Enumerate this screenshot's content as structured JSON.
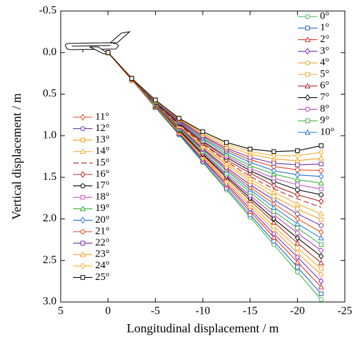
{
  "chart_data": {
    "type": "line",
    "xlabel": "Longitudinal displacement / m",
    "ylabel": "Vertical displacement / m",
    "xlim": [
      5,
      -25
    ],
    "xticks": [
      5,
      0,
      -5,
      -10,
      -15,
      -20,
      -25
    ],
    "ylim": [
      -0.5,
      3.0
    ],
    "y_inverted": true,
    "yticks": [
      -0.5,
      {
        "value": 0,
        "label": "0.0"
      },
      0.5,
      {
        "value": 1,
        "label": "1.0"
      },
      1.5,
      {
        "value": 2,
        "label": "2.0"
      },
      2.5,
      {
        "value": 3,
        "label": "3.0"
      }
    ],
    "x": [
      0,
      -2.5,
      -5,
      -7.5,
      -10,
      -12.5,
      -15,
      -17.5,
      -20,
      -22.5
    ],
    "series": [
      {
        "name": "0°",
        "color": "#3cb44b",
        "marker": "circle",
        "values": [
          0,
          0.33,
          0.66,
          0.99,
          1.32,
          1.65,
          1.98,
          2.31,
          2.64,
          2.97
        ]
      },
      {
        "name": "1°",
        "color": "#1f5fbf",
        "marker": "square",
        "values": [
          0,
          0.33,
          0.66,
          0.98,
          1.31,
          1.63,
          1.95,
          2.27,
          2.58,
          2.9
        ]
      },
      {
        "name": "2°",
        "color": "#e03020",
        "marker": "triangle",
        "values": [
          0,
          0.33,
          0.65,
          0.97,
          1.29,
          1.6,
          1.91,
          2.22,
          2.52,
          2.82
        ]
      },
      {
        "name": "3°",
        "color": "#7b2fbe",
        "marker": "diamond",
        "values": [
          0,
          0.33,
          0.65,
          0.97,
          1.28,
          1.58,
          1.88,
          2.18,
          2.46,
          2.75
        ]
      },
      {
        "name": "4°",
        "color": "#f0a020",
        "marker": "circle",
        "values": [
          0,
          0.33,
          0.65,
          0.96,
          1.26,
          1.56,
          1.85,
          2.13,
          2.41,
          2.67
        ]
      },
      {
        "name": "5°",
        "color": "#f5a623",
        "marker": "square",
        "values": [
          0,
          0.33,
          0.64,
          0.95,
          1.25,
          1.54,
          1.82,
          2.09,
          2.35,
          2.6
        ]
      },
      {
        "name": "6°",
        "color": "#b22222",
        "marker": "triangle",
        "values": [
          0,
          0.32,
          0.64,
          0.94,
          1.23,
          1.51,
          1.78,
          2.04,
          2.29,
          2.53
        ]
      },
      {
        "name": "7°",
        "color": "#000000",
        "marker": "diamond",
        "values": [
          0,
          0.32,
          0.63,
          0.93,
          1.22,
          1.49,
          1.75,
          2.0,
          2.23,
          2.45
        ]
      },
      {
        "name": "8°",
        "color": "#b040c0",
        "marker": "circle",
        "values": [
          0,
          0.32,
          0.63,
          0.92,
          1.2,
          1.47,
          1.72,
          1.95,
          2.17,
          2.38
        ]
      },
      {
        "name": "9°",
        "color": "#40b040",
        "marker": "square",
        "values": [
          0,
          0.32,
          0.63,
          0.92,
          1.19,
          1.45,
          1.68,
          1.91,
          2.11,
          2.31
        ]
      },
      {
        "name": "10°",
        "color": "#1e78d0",
        "marker": "triangle",
        "values": [
          0,
          0.32,
          0.62,
          0.91,
          1.17,
          1.42,
          1.65,
          1.86,
          2.06,
          2.23
        ]
      },
      {
        "name": "11°",
        "color": "#e05020",
        "marker": "diamond",
        "values": [
          0,
          0.32,
          0.62,
          0.9,
          1.16,
          1.4,
          1.62,
          1.82,
          2.0,
          2.16
        ]
      },
      {
        "name": "12°",
        "color": "#7030a0",
        "marker": "circle",
        "values": [
          0,
          0.32,
          0.62,
          0.89,
          1.15,
          1.38,
          1.59,
          1.77,
          1.94,
          2.08
        ]
      },
      {
        "name": "13°",
        "color": "#f0a020",
        "marker": "square",
        "values": [
          0,
          0.32,
          0.61,
          0.88,
          1.13,
          1.35,
          1.55,
          1.73,
          1.88,
          2.01
        ]
      },
      {
        "name": "14°",
        "color": "#f0b030",
        "marker": "triangle",
        "values": [
          0,
          0.32,
          0.61,
          0.88,
          1.12,
          1.33,
          1.52,
          1.68,
          1.82,
          1.94
        ]
      },
      {
        "name": "15°",
        "color": "#b02020",
        "marker": "none",
        "values": [
          0,
          0.32,
          0.61,
          0.87,
          1.1,
          1.31,
          1.49,
          1.64,
          1.76,
          1.86
        ]
      },
      {
        "name": "16°",
        "color": "#b02020",
        "marker": "diamond",
        "values": [
          0,
          0.32,
          0.6,
          0.86,
          1.09,
          1.29,
          1.45,
          1.6,
          1.71,
          1.79
        ]
      },
      {
        "name": "17°",
        "color": "#000000",
        "marker": "circle",
        "values": [
          0,
          0.31,
          0.6,
          0.85,
          1.07,
          1.26,
          1.42,
          1.55,
          1.65,
          1.71
        ]
      },
      {
        "name": "18°",
        "color": "#c050c0",
        "marker": "square",
        "values": [
          0,
          0.31,
          0.59,
          0.84,
          1.06,
          1.24,
          1.39,
          1.51,
          1.59,
          1.64
        ]
      },
      {
        "name": "19°",
        "color": "#30b030",
        "marker": "triangle",
        "values": [
          0,
          0.31,
          0.59,
          0.83,
          1.04,
          1.22,
          1.36,
          1.46,
          1.53,
          1.57
        ]
      },
      {
        "name": "20°",
        "color": "#2070d0",
        "marker": "diamond",
        "values": [
          0,
          0.31,
          0.59,
          0.83,
          1.03,
          1.19,
          1.32,
          1.42,
          1.47,
          1.49
        ]
      },
      {
        "name": "21°",
        "color": "#e04020",
        "marker": "circle",
        "values": [
          0,
          0.31,
          0.58,
          0.82,
          1.01,
          1.17,
          1.29,
          1.37,
          1.41,
          1.42
        ]
      },
      {
        "name": "22°",
        "color": "#7030a0",
        "marker": "square",
        "values": [
          0,
          0.31,
          0.58,
          0.81,
          1.0,
          1.15,
          1.26,
          1.33,
          1.35,
          1.34
        ]
      },
      {
        "name": "23°",
        "color": "#f0a020",
        "marker": "triangle",
        "values": [
          0,
          0.31,
          0.58,
          0.8,
          0.98,
          1.13,
          1.22,
          1.28,
          1.3,
          1.27
        ]
      },
      {
        "name": "24°",
        "color": "#f0b030",
        "marker": "diamond",
        "values": [
          0,
          0.31,
          0.57,
          0.79,
          0.97,
          1.1,
          1.19,
          1.24,
          1.24,
          1.2
        ]
      },
      {
        "name": "25°",
        "color": "#000000",
        "marker": "square",
        "values": [
          0,
          0.31,
          0.57,
          0.79,
          0.95,
          1.08,
          1.16,
          1.19,
          1.18,
          1.12
        ]
      }
    ]
  }
}
